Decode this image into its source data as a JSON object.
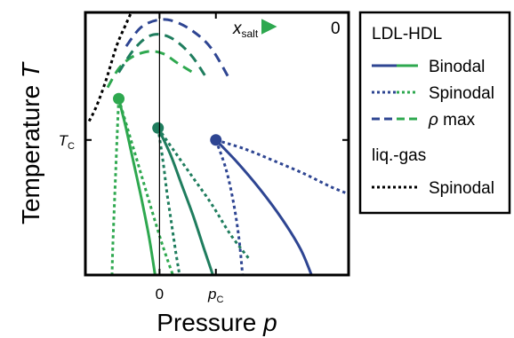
{
  "chart_data": {
    "type": "line",
    "title": "",
    "xlabel_text": "Pressure",
    "xlabel_symbol": "p",
    "ylabel_text": "Temperature",
    "ylabel_symbol": "T",
    "x_tick_labels": [
      {
        "x": 0,
        "label": "0",
        "sub": ""
      },
      {
        "x": 0.76,
        "label": "p",
        "sub": "C"
      }
    ],
    "y_tick_labels": [
      {
        "y": 0,
        "label": "T",
        "sub": "C"
      }
    ],
    "xlim": [
      -1.0,
      2.55
    ],
    "ylim": [
      -1.8,
      1.7
    ],
    "arrow_annotation": {
      "start": "0",
      "end_symbol": "x",
      "end_sub": "salt"
    },
    "colors": {
      "green_light": "#2ea84f",
      "green_mid": "#1f7d5e",
      "blue": "#2e4592",
      "liq_gas": "#000000"
    },
    "legend": {
      "placement": "right",
      "group1_title": "LDL-HDL",
      "group1_entries": [
        {
          "label": "Binodal",
          "style": "solid"
        },
        {
          "label": "Spinodal",
          "style": "dotted"
        },
        {
          "label": "ρ max",
          "style": "dashed",
          "symbol": "ρ",
          "text": "max"
        }
      ],
      "group2_title": "liq.-gas",
      "group2_entries": [
        {
          "label": "Spinodal",
          "style": "dotted"
        }
      ]
    },
    "critical_points": [
      {
        "series": "green_light",
        "p": -0.55,
        "T": 0.55
      },
      {
        "series": "green_mid",
        "p": -0.02,
        "T": 0.16
      },
      {
        "series": "blue",
        "p": 0.76,
        "T": 0.0
      }
    ],
    "series": [
      {
        "name": "Binodal",
        "color_key": "green_light",
        "style": "solid",
        "points": [
          [
            -0.55,
            0.55
          ],
          [
            -0.45,
            0.15
          ],
          [
            -0.35,
            -0.3
          ],
          [
            -0.24,
            -0.8
          ],
          [
            -0.14,
            -1.3
          ],
          [
            -0.06,
            -1.8
          ]
        ]
      },
      {
        "name": "Spinodal",
        "color_key": "green_light",
        "style": "dotted",
        "points": [
          [
            -0.55,
            0.55
          ],
          [
            -0.57,
            0.1
          ],
          [
            -0.59,
            -0.4
          ],
          [
            -0.61,
            -0.9
          ],
          [
            -0.63,
            -1.4
          ],
          [
            -0.64,
            -1.8
          ]
        ]
      },
      {
        "name": "Spinodal",
        "color_key": "green_light",
        "style": "dotted",
        "points": [
          [
            -0.55,
            0.55
          ],
          [
            -0.4,
            0.05
          ],
          [
            -0.25,
            -0.45
          ],
          [
            -0.1,
            -0.95
          ],
          [
            0.04,
            -1.4
          ],
          [
            0.18,
            -1.8
          ]
        ]
      },
      {
        "name": "ρ max",
        "color_key": "green_light",
        "style": "dashed",
        "points": [
          [
            -0.7,
            0.7
          ],
          [
            -0.55,
            0.95
          ],
          [
            -0.38,
            1.1
          ],
          [
            -0.15,
            1.18
          ],
          [
            0.05,
            1.15
          ],
          [
            0.25,
            1.02
          ],
          [
            0.45,
            0.9
          ]
        ]
      },
      {
        "name": "Binodal",
        "color_key": "green_mid",
        "style": "solid",
        "points": [
          [
            -0.02,
            0.16
          ],
          [
            0.15,
            -0.2
          ],
          [
            0.3,
            -0.6
          ],
          [
            0.45,
            -1.0
          ],
          [
            0.6,
            -1.45
          ],
          [
            0.72,
            -1.8
          ]
        ]
      },
      {
        "name": "Spinodal",
        "color_key": "green_mid",
        "style": "dotted",
        "points": [
          [
            -0.02,
            0.16
          ],
          [
            0.05,
            -0.3
          ],
          [
            0.1,
            -0.7
          ],
          [
            0.16,
            -1.1
          ],
          [
            0.22,
            -1.5
          ],
          [
            0.27,
            -1.8
          ]
        ]
      },
      {
        "name": "Spinodal",
        "color_key": "green_mid",
        "style": "dotted",
        "points": [
          [
            -0.02,
            0.16
          ],
          [
            0.2,
            -0.15
          ],
          [
            0.45,
            -0.5
          ],
          [
            0.7,
            -0.85
          ],
          [
            0.95,
            -1.25
          ],
          [
            1.22,
            -1.6
          ]
        ]
      },
      {
        "name": "ρ max",
        "color_key": "green_mid",
        "style": "dashed",
        "points": [
          [
            -0.55,
            0.9
          ],
          [
            -0.35,
            1.2
          ],
          [
            -0.15,
            1.38
          ],
          [
            0.05,
            1.4
          ],
          [
            0.25,
            1.3
          ],
          [
            0.45,
            1.1
          ],
          [
            0.65,
            0.8
          ]
        ]
      },
      {
        "name": "Binodal",
        "color_key": "blue",
        "style": "solid",
        "points": [
          [
            0.76,
            0.0
          ],
          [
            1.05,
            -0.3
          ],
          [
            1.35,
            -0.65
          ],
          [
            1.65,
            -1.05
          ],
          [
            1.9,
            -1.45
          ],
          [
            2.05,
            -1.8
          ]
        ]
      },
      {
        "name": "Spinodal",
        "color_key": "blue",
        "style": "dotted",
        "points": [
          [
            0.76,
            0.0
          ],
          [
            0.9,
            -0.4
          ],
          [
            1.0,
            -0.85
          ],
          [
            1.07,
            -1.3
          ],
          [
            1.12,
            -1.8
          ]
        ]
      },
      {
        "name": "Spinodal",
        "color_key": "blue",
        "style": "dotted",
        "points": [
          [
            0.76,
            0.0
          ],
          [
            1.15,
            -0.12
          ],
          [
            1.55,
            -0.28
          ],
          [
            1.95,
            -0.45
          ],
          [
            2.3,
            -0.62
          ],
          [
            2.55,
            -0.72
          ]
        ]
      },
      {
        "name": "ρ max",
        "color_key": "blue",
        "style": "dashed",
        "points": [
          [
            -0.45,
            1.25
          ],
          [
            -0.25,
            1.5
          ],
          [
            -0.02,
            1.6
          ],
          [
            0.2,
            1.58
          ],
          [
            0.45,
            1.45
          ],
          [
            0.7,
            1.22
          ],
          [
            0.95,
            0.8
          ]
        ]
      },
      {
        "name": "Spinodal",
        "color_key": "liq_gas",
        "style": "dotted",
        "points": [
          [
            -0.95,
            0.25
          ],
          [
            -0.85,
            0.45
          ],
          [
            -0.72,
            0.8
          ],
          [
            -0.58,
            1.25
          ],
          [
            -0.45,
            1.55
          ],
          [
            -0.38,
            1.7
          ]
        ]
      }
    ]
  }
}
